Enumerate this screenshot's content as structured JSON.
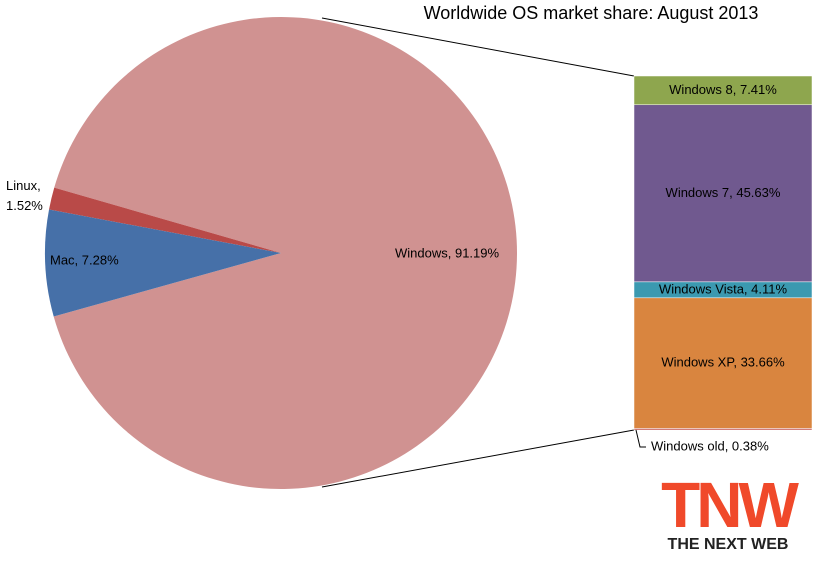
{
  "chart_data": {
    "type": "pie-of-bar",
    "title": "Worldwide OS market share: August 2013",
    "categories": [
      "Mac",
      "Linux",
      "Windows"
    ],
    "values": [
      7.28,
      1.52,
      91.19
    ],
    "value_labels": [
      "Mac, 7.28%",
      "Linux, 1.52%",
      "Windows, 91.19%"
    ],
    "colors": [
      "#4670a8",
      "#b94a48",
      "#d09291"
    ],
    "breakdown": {
      "categories": [
        "Windows 8",
        "Windows 7",
        "Windows Vista",
        "Windows XP",
        "Windows old"
      ],
      "values": [
        7.41,
        45.63,
        4.11,
        33.66,
        0.38
      ],
      "value_labels": [
        "Windows 8, 7.41%",
        "Windows 7, 45.63%",
        "Windows Vista, 4.11%",
        "Windows XP, 33.66%",
        "Windows old, 0.38%"
      ],
      "colors": [
        "#8ea64e",
        "#70598f",
        "#3b99b0",
        "#d9853f",
        "#c0504d"
      ]
    }
  },
  "logo": {
    "mark": "TNW",
    "name": "THE NEXT WEB"
  }
}
